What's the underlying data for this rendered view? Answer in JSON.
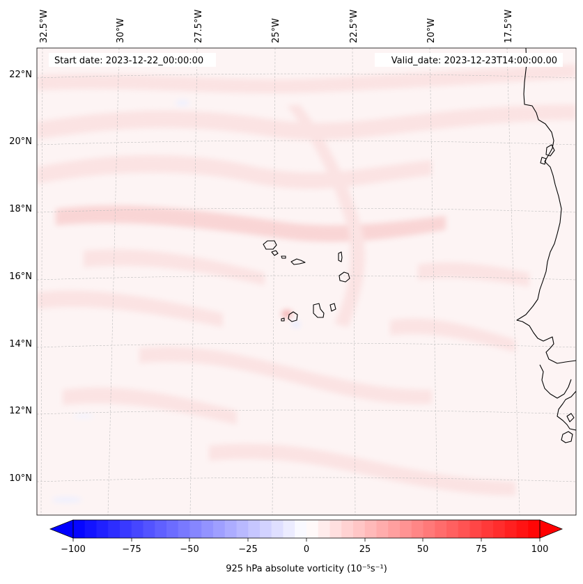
{
  "map": {
    "start_date": "Start date: 2023-12-22_00:00:00",
    "valid_date": "Valid_date: 2023-12-23T14:00:00.00",
    "lon_labels": [
      "32.5°W",
      "30°W",
      "27.5°W",
      "25°W",
      "22.5°W",
      "20°W",
      "17.5°W"
    ],
    "lat_labels": [
      "22°N",
      "20°N",
      "18°N",
      "16°N",
      "14°N",
      "12°N",
      "10°N"
    ],
    "field_colors": {
      "background": "#fdf4f4",
      "band": "#fbe3e3",
      "band_strong": "#f9d5d5",
      "negative": "#eef0ff"
    },
    "coastline_color": "#000000"
  },
  "colorbar": {
    "label": "925 hPa absolute vorticity (10⁻⁵s⁻¹)",
    "ticks": [
      "−100",
      "−75",
      "−50",
      "−25",
      "0",
      "25",
      "50",
      "75",
      "100"
    ],
    "tick_values": [
      -100,
      -75,
      -50,
      -25,
      0,
      25,
      50,
      75,
      100
    ],
    "range": [
      -100,
      100
    ],
    "step": 5,
    "cmap": "bwr",
    "extend": "both",
    "min_color": "#0000ff",
    "mid_color": "#ffffff",
    "max_color": "#ff0000"
  }
}
